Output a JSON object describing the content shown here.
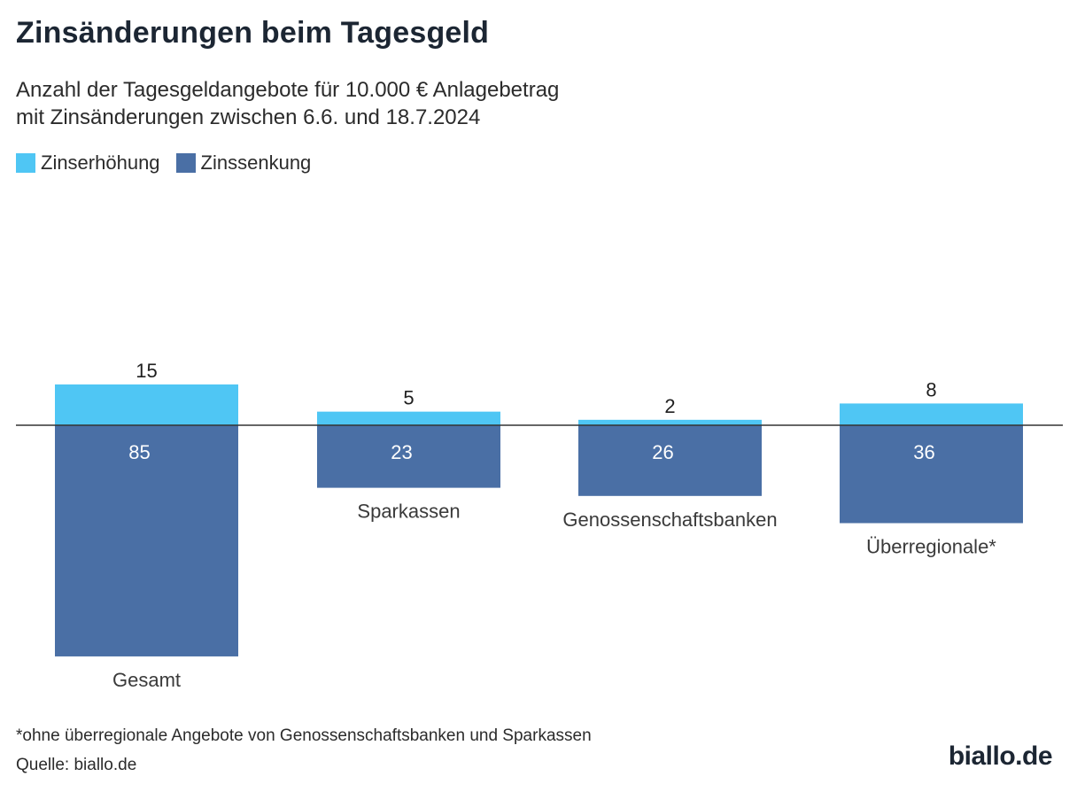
{
  "title": "Zinsänderungen beim Tagesgeld",
  "subtitle": {
    "line1": "Anzahl der Tagesgeldangebote für 10.000 € Anlagebetrag",
    "line2": "mit Zinsänderungen zwischen 6.6. und 18.7.2024"
  },
  "legend": {
    "increase": "Zinserhöhung",
    "decrease": "Zinssenkung"
  },
  "colors": {
    "increase": "#4fc6f4",
    "decrease": "#4a6fa5",
    "axis": "#333333",
    "label_light": "#ffffff",
    "label_dark": "#1f1f1f",
    "category": "#3a3a3a"
  },
  "chart_data": {
    "type": "bar",
    "title": "Zinsänderungen beim Tagesgeld",
    "categories": [
      "Gesamt",
      "Sparkassen",
      "Genossenschaftsbanken",
      "Überregionale*"
    ],
    "series": [
      {
        "name": "Zinserhöhung",
        "values": [
          15,
          5,
          2,
          8
        ],
        "direction": "up"
      },
      {
        "name": "Zinssenkung",
        "values": [
          85,
          23,
          26,
          36
        ],
        "direction": "down"
      }
    ],
    "xlabel": "",
    "ylabel": "",
    "ylim": [
      -85,
      15
    ],
    "grid": false,
    "legend_position": "top-left"
  },
  "footnote": "*ohne überregionale Angebote von Genossenschaftsbanken und Sparkassen",
  "source": "Quelle: biallo.de",
  "logo": "biallo.de"
}
